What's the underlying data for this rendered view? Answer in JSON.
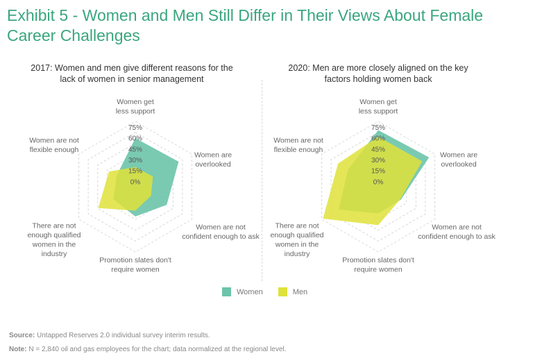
{
  "title": "Exhibit 5 - Women and Men Still Differ in Their Views About Female Career Challenges",
  "colors": {
    "women": "#6cc4aa",
    "men": "#dfe23a",
    "title": "#3aa67f"
  },
  "legend": [
    {
      "label": "Women",
      "color": "#6cc4aa"
    },
    {
      "label": "Men",
      "color": "#dfe23a"
    }
  ],
  "footer": {
    "source_label": "Source:",
    "source_text": " Untapped Reserves 2.0 individual survey interim results.",
    "note_label": "Note:",
    "note_text": " N = 2,840 oil and gas employees for the chart; data normalized at the regional level."
  },
  "chart_data": [
    {
      "type": "radar",
      "title": "2017: Women and men give different reasons for the lack of women in senior management",
      "axes": [
        [
          "Women get",
          "less support"
        ],
        [
          "Women are",
          "overlooked"
        ],
        [
          "Women are not",
          "confident enough to ask"
        ],
        [
          "Promotion slates don't",
          "require women"
        ],
        [
          "There are not",
          "enough qualified",
          "women in the",
          "industry"
        ],
        [
          "Women are not",
          "flexible enough"
        ]
      ],
      "tick_labels": [
        "0%",
        "15%",
        "30%",
        "45%",
        "60%",
        "75%"
      ],
      "range": [
        -15,
        75
      ],
      "grid": true,
      "legend_position": "bottom",
      "series": [
        {
          "name": "Women",
          "values": [
            52,
            54,
            35,
            26,
            20,
            15
          ]
        },
        {
          "name": "Men",
          "values": [
            12,
            13,
            10,
            18,
            44,
            27
          ]
        }
      ]
    },
    {
      "type": "radar",
      "title": "2020: Men are more closely aligned on the key factors holding women back",
      "axes": [
        [
          "Women get",
          "less support"
        ],
        [
          "Women are",
          "overlooked"
        ],
        [
          "Women are not",
          "confident enough to ask"
        ],
        [
          "Promotion slates don't",
          "require women"
        ],
        [
          "There are not",
          "enough qualified",
          "women in the",
          "industry"
        ],
        [
          "Women are not",
          "flexible enough"
        ]
      ],
      "tick_labels": [
        "0%",
        "15%",
        "30%",
        "45%",
        "60%",
        "75%"
      ],
      "range": [
        -15,
        75
      ],
      "grid": true,
      "legend_position": "bottom",
      "series": [
        {
          "name": "Women",
          "values": [
            63,
            66,
            21,
            22,
            48,
            33
          ]
        },
        {
          "name": "Men",
          "values": [
            54,
            55,
            20,
            38,
            73,
            49
          ]
        }
      ]
    }
  ]
}
